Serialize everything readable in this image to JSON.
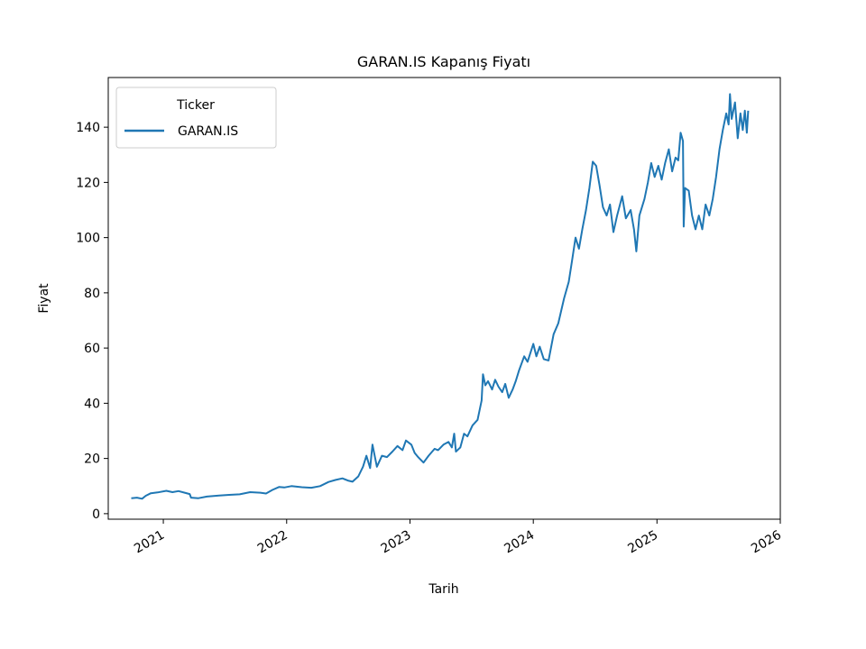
{
  "chart_data": {
    "type": "line",
    "title": "GARAN.IS Kapanış Fiyatı",
    "xlabel": "Tarih",
    "ylabel": "Fiyat",
    "xlim": [
      "2020-07-22",
      "2026-01-01"
    ],
    "ylim": [
      -2,
      158
    ],
    "x_ticks": [
      "2021",
      "2022",
      "2023",
      "2024",
      "2025",
      "2026"
    ],
    "y_ticks": [
      0,
      20,
      40,
      60,
      80,
      100,
      120,
      140
    ],
    "grid": false,
    "legend": {
      "title": "Ticker",
      "placement": "top-left"
    },
    "colors": {
      "series": "#1f77b4"
    },
    "series": [
      {
        "name": "GARAN.IS",
        "points": [
          [
            "2020-09-28",
            5.6
          ],
          [
            "2020-10-15",
            5.8
          ],
          [
            "2020-10-30",
            5.4
          ],
          [
            "2020-11-10",
            6.5
          ],
          [
            "2020-11-25",
            7.4
          ],
          [
            "2020-12-15",
            7.7
          ],
          [
            "2021-01-10",
            8.3
          ],
          [
            "2021-01-28",
            7.8
          ],
          [
            "2021-02-15",
            8.2
          ],
          [
            "2021-03-05",
            7.6
          ],
          [
            "2021-03-20",
            7.1
          ],
          [
            "2021-03-24",
            5.8
          ],
          [
            "2021-04-15",
            5.6
          ],
          [
            "2021-05-10",
            6.2
          ],
          [
            "2021-06-15",
            6.6
          ],
          [
            "2021-07-15",
            6.8
          ],
          [
            "2021-08-15",
            7.0
          ],
          [
            "2021-09-15",
            7.8
          ],
          [
            "2021-10-15",
            7.6
          ],
          [
            "2021-11-01",
            7.3
          ],
          [
            "2021-11-20",
            8.6
          ],
          [
            "2021-12-10",
            9.7
          ],
          [
            "2021-12-25",
            9.5
          ],
          [
            "2022-01-15",
            10.0
          ],
          [
            "2022-02-15",
            9.6
          ],
          [
            "2022-03-15",
            9.4
          ],
          [
            "2022-04-10",
            10.0
          ],
          [
            "2022-05-05",
            11.5
          ],
          [
            "2022-05-25",
            12.2
          ],
          [
            "2022-06-15",
            12.8
          ],
          [
            "2022-07-01",
            12.0
          ],
          [
            "2022-07-15",
            11.6
          ],
          [
            "2022-08-01",
            13.5
          ],
          [
            "2022-08-15",
            17.0
          ],
          [
            "2022-08-25",
            21.0
          ],
          [
            "2022-09-05",
            16.5
          ],
          [
            "2022-09-12",
            25.0
          ],
          [
            "2022-09-25",
            17.0
          ],
          [
            "2022-10-10",
            21.0
          ],
          [
            "2022-10-25",
            20.5
          ],
          [
            "2022-11-10",
            22.5
          ],
          [
            "2022-11-25",
            24.5
          ],
          [
            "2022-12-10",
            23.0
          ],
          [
            "2022-12-20",
            26.5
          ],
          [
            "2023-01-05",
            25.0
          ],
          [
            "2023-01-15",
            22.0
          ],
          [
            "2023-01-25",
            20.5
          ],
          [
            "2023-02-10",
            18.5
          ],
          [
            "2023-02-25",
            21.0
          ],
          [
            "2023-03-15",
            23.5
          ],
          [
            "2023-03-25",
            23.0
          ],
          [
            "2023-04-10",
            25.0
          ],
          [
            "2023-04-25",
            26.0
          ],
          [
            "2023-05-05",
            24.0
          ],
          [
            "2023-05-12",
            29.0
          ],
          [
            "2023-05-17",
            22.5
          ],
          [
            "2023-05-30",
            24.0
          ],
          [
            "2023-06-10",
            29.0
          ],
          [
            "2023-06-20",
            28.0
          ],
          [
            "2023-07-05",
            32.0
          ],
          [
            "2023-07-20",
            34.0
          ],
          [
            "2023-08-01",
            41.0
          ],
          [
            "2023-08-05",
            50.5
          ],
          [
            "2023-08-12",
            46.5
          ],
          [
            "2023-08-20",
            48.0
          ],
          [
            "2023-09-01",
            45.0
          ],
          [
            "2023-09-10",
            48.5
          ],
          [
            "2023-09-20",
            46.0
          ],
          [
            "2023-10-01",
            44.0
          ],
          [
            "2023-10-10",
            47.0
          ],
          [
            "2023-10-20",
            42.0
          ],
          [
            "2023-11-01",
            45.0
          ],
          [
            "2023-11-10",
            48.0
          ],
          [
            "2023-11-20",
            52.0
          ],
          [
            "2023-12-05",
            57.0
          ],
          [
            "2023-12-15",
            55.0
          ],
          [
            "2024-01-01",
            61.5
          ],
          [
            "2024-01-10",
            57.0
          ],
          [
            "2024-01-20",
            60.5
          ],
          [
            "2024-02-01",
            56.0
          ],
          [
            "2024-02-15",
            55.5
          ],
          [
            "2024-03-01",
            65.0
          ],
          [
            "2024-03-15",
            69.0
          ],
          [
            "2024-04-01",
            78.0
          ],
          [
            "2024-04-15",
            84.0
          ],
          [
            "2024-04-25",
            92.0
          ],
          [
            "2024-05-05",
            100.0
          ],
          [
            "2024-05-15",
            96.0
          ],
          [
            "2024-05-25",
            103.0
          ],
          [
            "2024-06-05",
            110.0
          ],
          [
            "2024-06-15",
            118.0
          ],
          [
            "2024-06-25",
            127.5
          ],
          [
            "2024-07-05",
            126.0
          ],
          [
            "2024-07-15",
            119.0
          ],
          [
            "2024-07-25",
            111.0
          ],
          [
            "2024-08-05",
            108.0
          ],
          [
            "2024-08-15",
            112.0
          ],
          [
            "2024-08-25",
            102.0
          ],
          [
            "2024-09-05",
            108.0
          ],
          [
            "2024-09-20",
            115.0
          ],
          [
            "2024-10-01",
            107.0
          ],
          [
            "2024-10-15",
            110.0
          ],
          [
            "2024-10-25",
            103.0
          ],
          [
            "2024-11-01",
            95.0
          ],
          [
            "2024-11-10",
            108.0
          ],
          [
            "2024-11-25",
            114.0
          ],
          [
            "2024-12-05",
            120.0
          ],
          [
            "2024-12-15",
            127.0
          ],
          [
            "2024-12-25",
            122.0
          ],
          [
            "2025-01-05",
            126.0
          ],
          [
            "2025-01-15",
            121.0
          ],
          [
            "2025-01-25",
            127.0
          ],
          [
            "2025-02-05",
            132.0
          ],
          [
            "2025-02-15",
            124.0
          ],
          [
            "2025-02-25",
            129.0
          ],
          [
            "2025-03-05",
            128.0
          ],
          [
            "2025-03-12",
            138.0
          ],
          [
            "2025-03-19",
            135.0
          ],
          [
            "2025-03-21",
            104.0
          ],
          [
            "2025-03-25",
            118.0
          ],
          [
            "2025-04-05",
            117.0
          ],
          [
            "2025-04-15",
            108.0
          ],
          [
            "2025-04-25",
            103.0
          ],
          [
            "2025-05-05",
            108.0
          ],
          [
            "2025-05-15",
            103.0
          ],
          [
            "2025-05-25",
            112.0
          ],
          [
            "2025-06-05",
            108.0
          ],
          [
            "2025-06-15",
            114.0
          ],
          [
            "2025-06-25",
            122.0
          ],
          [
            "2025-07-05",
            132.0
          ],
          [
            "2025-07-15",
            139.0
          ],
          [
            "2025-07-25",
            145.0
          ],
          [
            "2025-08-01",
            141.0
          ],
          [
            "2025-08-05",
            152.0
          ],
          [
            "2025-08-10",
            143.0
          ],
          [
            "2025-08-20",
            149.0
          ],
          [
            "2025-08-28",
            136.0
          ],
          [
            "2025-09-05",
            145.0
          ],
          [
            "2025-09-12",
            139.0
          ],
          [
            "2025-09-18",
            146.0
          ],
          [
            "2025-09-24",
            138.0
          ],
          [
            "2025-09-28",
            146.0
          ]
        ]
      }
    ]
  }
}
